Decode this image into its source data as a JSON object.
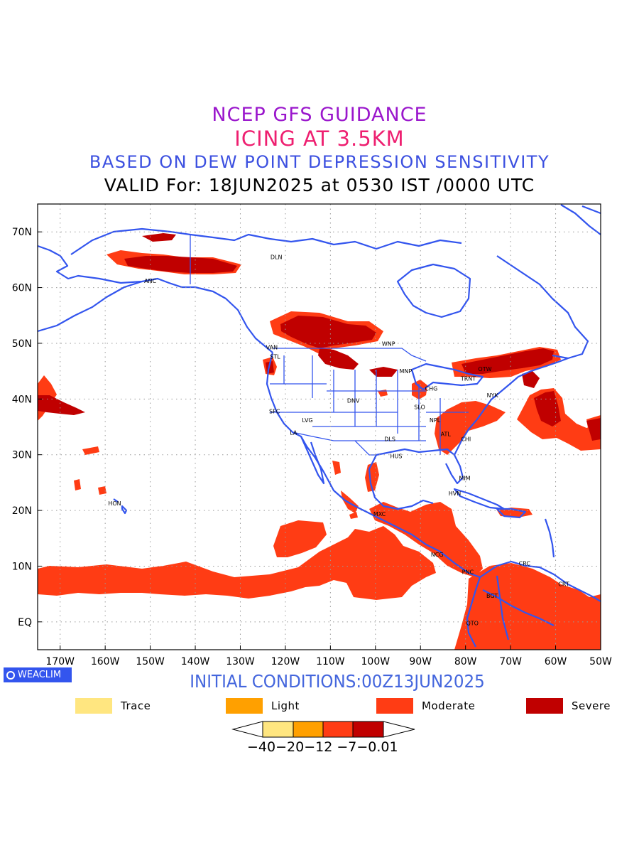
{
  "header": {
    "line1": "NCEP GFS GUIDANCE",
    "line2": "ICING AT 3.5KM",
    "line3": "BASED ON DEW POINT DEPRESSION SENSITIVITY",
    "line4": "VALID For: 18JUN2025 at 0530 IST /0000 UTC"
  },
  "colors": {
    "line1": "#9a16cc",
    "line2": "#ee1f70",
    "line3": "#3c50e0",
    "coast": "#3355ee",
    "trace": "#ffe680",
    "light": "#ffa000",
    "moderate": "#ff3c14",
    "severe": "#c00000",
    "brand_bg": "#3355ee"
  },
  "map": {
    "lon_range": [
      -175,
      -50
    ],
    "lat_range": [
      -5,
      75
    ],
    "lon_ticks": [
      -170,
      -160,
      -150,
      -140,
      -130,
      -120,
      -110,
      -100,
      -90,
      -80,
      -70,
      -60,
      -50
    ],
    "lon_tick_labels": [
      "170W",
      "160W",
      "150W",
      "140W",
      "130W",
      "120W",
      "110W",
      "100W",
      "90W",
      "80W",
      "70W",
      "60W",
      "50W"
    ],
    "lat_ticks": [
      0,
      10,
      20,
      30,
      40,
      50,
      60,
      70
    ],
    "lat_tick_labels": [
      "EQ",
      "10N",
      "20N",
      "30N",
      "40N",
      "50N",
      "60N",
      "70N"
    ],
    "grid": "dotted",
    "stations": [
      {
        "code": "ANC",
        "lon": -150.0,
        "lat": 61.2
      },
      {
        "code": "DLN",
        "lon": -122.0,
        "lat": 65.5
      },
      {
        "code": "VAN",
        "lon": -123.0,
        "lat": 49.3
      },
      {
        "code": "STL",
        "lon": -122.3,
        "lat": 47.6
      },
      {
        "code": "WNP",
        "lon": -97.1,
        "lat": 49.9
      },
      {
        "code": "MNP",
        "lon": -93.3,
        "lat": 45.0
      },
      {
        "code": "TRNT",
        "lon": -79.4,
        "lat": 43.7
      },
      {
        "code": "OTW",
        "lon": -75.7,
        "lat": 45.4
      },
      {
        "code": "CHG",
        "lon": -87.6,
        "lat": 41.9
      },
      {
        "code": "NYK",
        "lon": -74.0,
        "lat": 40.7
      },
      {
        "code": "DNV",
        "lon": -104.9,
        "lat": 39.7
      },
      {
        "code": "SLO",
        "lon": -90.2,
        "lat": 38.6
      },
      {
        "code": "SFC",
        "lon": -122.4,
        "lat": 37.8
      },
      {
        "code": "LVG",
        "lon": -115.1,
        "lat": 36.2
      },
      {
        "code": "LA",
        "lon": -118.2,
        "lat": 34.0
      },
      {
        "code": "NPL",
        "lon": -86.8,
        "lat": 36.2
      },
      {
        "code": "ATL",
        "lon": -84.4,
        "lat": 33.7
      },
      {
        "code": "DLS",
        "lon": -96.8,
        "lat": 32.8
      },
      {
        "code": "CHI",
        "lon": -79.9,
        "lat": 32.8
      },
      {
        "code": "HUS",
        "lon": -95.4,
        "lat": 29.8
      },
      {
        "code": "MIM",
        "lon": -80.2,
        "lat": 25.8
      },
      {
        "code": "HVN",
        "lon": -82.4,
        "lat": 23.1
      },
      {
        "code": "HON",
        "lon": -157.9,
        "lat": 21.3
      },
      {
        "code": "MXC",
        "lon": -99.1,
        "lat": 19.4
      },
      {
        "code": "NCG",
        "lon": -86.3,
        "lat": 12.1
      },
      {
        "code": "PNC",
        "lon": -79.5,
        "lat": 9.0
      },
      {
        "code": "CRC",
        "lon": -66.9,
        "lat": 10.5
      },
      {
        "code": "CRT",
        "lon": -58.2,
        "lat": 6.8
      },
      {
        "code": "BGT",
        "lon": -74.1,
        "lat": 4.7
      },
      {
        "code": "QTO",
        "lon": -78.5,
        "lat": -0.2
      }
    ]
  },
  "branding": {
    "label": "WEACLIM"
  },
  "footer": {
    "initial_conditions": "INITIAL CONDITIONS:00Z13JUN2025"
  },
  "legend": {
    "items": [
      {
        "label": "Trace",
        "color": "#ffe680"
      },
      {
        "label": "Light",
        "color": "#ffa000"
      },
      {
        "label": "Moderate",
        "color": "#ff3c14"
      },
      {
        "label": "Severe",
        "color": "#c00000"
      }
    ],
    "colorbar_labels": "−40−20−12 −7−0.01"
  }
}
